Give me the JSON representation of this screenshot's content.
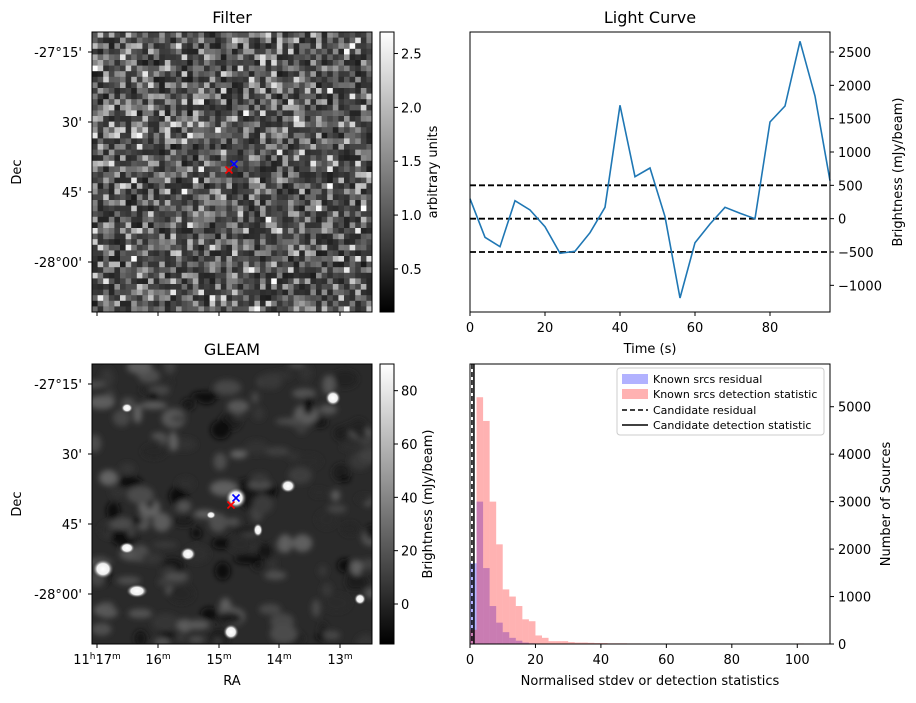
{
  "chart_data": [
    {
      "type": "heatmap",
      "title": "Filter",
      "ylabel": "Dec",
      "ytick_labels": [
        "-27°15'",
        "30'",
        "45'",
        "-28°00'"
      ],
      "colorbar": {
        "label": "arbitrary units",
        "range": [
          0.1,
          2.7
        ],
        "ticks": [
          0.5,
          1.0,
          1.5,
          2.0,
          2.5
        ],
        "tick_labels": [
          "0.5",
          "1.0",
          "1.5",
          "2.0",
          "2.5"
        ],
        "colormap": "gray"
      },
      "markers": [
        {
          "symbol": "x",
          "color": "#0000ff"
        },
        {
          "symbol": "x",
          "color": "#ff0000"
        }
      ]
    },
    {
      "type": "line",
      "title": "Light Curve",
      "xlabel": "Time (s)",
      "ylabel": "Brightness (mJy/beam)",
      "xlim": [
        0,
        96
      ],
      "ylim": [
        -1400,
        2800
      ],
      "xticks": [
        0,
        20,
        40,
        60,
        80
      ],
      "yticks": [
        -1000,
        -500,
        0,
        500,
        1000,
        1500,
        2000,
        2500
      ],
      "x": [
        0,
        4,
        8,
        12,
        16,
        20,
        24,
        28,
        32,
        36,
        40,
        44,
        48,
        52,
        56,
        60,
        64,
        68,
        72,
        76,
        80,
        84,
        88,
        92,
        96
      ],
      "series": [
        {
          "color": "#1f77b4",
          "values": [
            300,
            -280,
            -420,
            270,
            130,
            -120,
            -520,
            -490,
            -210,
            170,
            1700,
            630,
            760,
            30,
            -1190,
            -360,
            -80,
            170,
            80,
            0,
            1450,
            1690,
            2660,
            1840,
            570
          ]
        }
      ],
      "hlines": [
        {
          "y": 500,
          "style": "dashed"
        },
        {
          "y": 0,
          "style": "dashed"
        },
        {
          "y": -500,
          "style": "dashed"
        }
      ]
    },
    {
      "type": "heatmap",
      "title": "GLEAM",
      "xlabel": "RA",
      "ylabel": "Dec",
      "xtick_labels": [
        {
          "h": "11",
          "hsup": "h",
          "m": "17",
          "msup": "m"
        },
        {
          "m": "16",
          "msup": "m"
        },
        {
          "m": "15",
          "msup": "m"
        },
        {
          "m": "14",
          "msup": "m"
        },
        {
          "m": "13",
          "msup": "m"
        }
      ],
      "ytick_labels": [
        "-27°15'",
        "30'",
        "45'",
        "-28°00'"
      ],
      "colorbar": {
        "label": "Brightness (mJy/beam)",
        "range": [
          -15,
          90
        ],
        "ticks": [
          0,
          20,
          40,
          60,
          80
        ],
        "tick_labels": [
          "0",
          "20",
          "40",
          "60",
          "80"
        ],
        "colormap": "gray"
      },
      "markers": [
        {
          "symbol": "x",
          "color": "#0000ff"
        },
        {
          "symbol": "x",
          "color": "#ff0000"
        }
      ]
    },
    {
      "type": "bar",
      "subtype": "histogram",
      "xlabel": "Normalised stdev or detection statistics",
      "ylabel": "Number of Sources",
      "xlim": [
        0,
        110
      ],
      "ylim": [
        0,
        5900
      ],
      "xticks": [
        0,
        20,
        40,
        60,
        80,
        100
      ],
      "yticks": [
        0,
        1000,
        2000,
        3000,
        4000,
        5000
      ],
      "bin_width": 2,
      "series": [
        {
          "name": "Known srcs residual",
          "color": "#0000ff",
          "alpha": 0.3,
          "bin_start": 0,
          "values": [
            1700,
            3000,
            1600,
            800,
            450,
            250,
            130,
            70,
            30,
            15,
            8,
            5,
            3,
            2,
            1
          ]
        },
        {
          "name": "Known srcs detection statistic",
          "color": "#ff0000",
          "alpha": 0.3,
          "bin_start": 0,
          "values": [
            300,
            5200,
            4700,
            3000,
            2100,
            1150,
            1000,
            800,
            520,
            480,
            180,
            130,
            60,
            60,
            60,
            40,
            30,
            30,
            25,
            20,
            20,
            15,
            15,
            15,
            12,
            12,
            10,
            10,
            10,
            8,
            8,
            8,
            6,
            6,
            6,
            5,
            5,
            5,
            5,
            4,
            4,
            4,
            4,
            3,
            3,
            3,
            3,
            3,
            3,
            3,
            12,
            3,
            3,
            3,
            3
          ]
        }
      ],
      "vlines": [
        {
          "name": "Candidate residual",
          "x": 0.6,
          "style": "dashed"
        },
        {
          "name": "Candidate detection statistic",
          "x": 1.2,
          "style": "solid"
        }
      ],
      "legend_position": "top-right"
    }
  ]
}
